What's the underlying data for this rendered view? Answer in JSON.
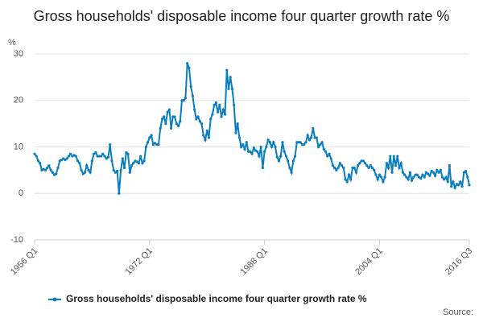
{
  "chart_data": {
    "type": "line",
    "title": "Gross households' disposable income four quarter growth rate %",
    "y_label": "%",
    "source": "Source:",
    "categories": [
      "1956 Q1",
      null,
      null,
      null,
      null,
      null,
      null,
      null,
      null,
      null,
      null,
      null,
      null,
      null,
      null,
      null,
      null,
      null,
      null,
      null,
      null,
      null,
      null,
      null,
      null,
      null,
      null,
      null,
      null,
      null,
      null,
      null,
      null,
      null,
      null,
      null,
      null,
      null,
      null,
      null,
      null,
      null,
      null,
      null,
      null,
      null,
      null,
      null,
      null,
      null,
      null,
      null,
      null,
      null,
      null,
      null,
      null,
      null,
      null,
      null,
      null,
      null,
      null,
      null,
      "1972 Q1",
      null,
      null,
      null,
      null,
      null,
      null,
      null,
      null,
      null,
      null,
      null,
      null,
      null,
      null,
      null,
      null,
      null,
      null,
      null,
      null,
      null,
      null,
      null,
      null,
      null,
      null,
      null,
      null,
      null,
      null,
      null,
      null,
      null,
      null,
      null,
      null,
      null,
      null,
      null,
      null,
      null,
      null,
      null,
      null,
      null,
      null,
      null,
      null,
      null,
      null,
      null,
      null,
      null,
      null,
      null,
      null,
      null,
      null,
      null,
      null,
      null,
      null,
      null,
      "1988 Q1",
      null,
      null,
      null,
      null,
      null,
      null,
      null,
      null,
      null,
      null,
      null,
      null,
      null,
      null,
      null,
      null,
      null,
      null,
      null,
      null,
      null,
      null,
      null,
      null,
      null,
      null,
      null,
      null,
      null,
      null,
      null,
      null,
      null,
      null,
      null,
      null,
      null,
      null,
      null,
      null,
      null,
      null,
      null,
      null,
      null,
      null,
      null,
      null,
      null,
      null,
      null,
      null,
      null,
      null,
      null,
      null,
      null,
      null,
      null,
      null,
      null,
      null,
      null,
      "2004 Q1",
      null,
      null,
      null,
      null,
      null,
      null,
      null,
      null,
      null,
      null,
      null,
      null,
      null,
      null,
      null,
      null,
      null,
      null,
      null,
      null,
      null,
      null,
      null,
      null,
      null,
      null,
      null,
      null,
      null,
      null,
      null,
      null,
      null,
      null,
      null,
      null,
      null,
      null,
      null,
      null,
      null,
      null,
      null,
      null,
      null,
      null,
      null,
      null,
      null,
      "2016 Q3"
    ],
    "series": [
      {
        "name": "Gross households' disposable income four quarter growth rate %",
        "color": "#0a7ebf",
        "values": [
          8.5,
          8,
          7,
          6.5,
          5,
          5.2,
          5,
          5.5,
          6,
          5,
          4.5,
          4,
          4.2,
          5.5,
          7,
          7.2,
          7.5,
          7.2,
          7.5,
          8,
          8.5,
          8,
          8.2,
          8,
          7,
          6.5,
          5,
          4.2,
          4.5,
          6,
          5,
          4.5,
          7,
          8.5,
          8.8,
          8,
          8,
          8,
          8.5,
          8,
          7.5,
          7.8,
          10.5,
          7,
          5,
          4.5,
          4.8,
          0,
          5,
          7.5,
          5.5,
          8.8,
          8.5,
          4.5,
          6,
          6.5,
          7,
          6.8,
          6.5,
          8,
          6.5,
          7,
          10,
          11,
          12,
          12.5,
          10.5,
          10.8,
          10.5,
          10.5,
          14,
          16,
          16.5,
          15,
          17.5,
          18,
          14,
          16.5,
          16.5,
          15,
          14.5,
          15.5,
          20,
          20,
          20.5,
          28,
          27,
          23,
          21,
          18,
          16,
          16.5,
          15.5,
          15,
          12.5,
          11.5,
          13.5,
          12,
          16,
          17,
          19,
          19.5,
          17.5,
          19,
          16.5,
          18,
          17,
          26.5,
          22.5,
          25,
          22.5,
          19,
          13,
          15,
          12,
          10,
          10.5,
          9.5,
          11,
          9,
          9,
          8.5,
          9.8,
          9.2,
          9,
          8,
          10,
          5.5,
          9,
          10,
          11.5,
          11,
          10,
          11,
          10,
          7.8,
          7,
          8,
          11,
          9,
          8,
          7,
          5.5,
          4.5,
          7,
          8,
          11,
          11,
          11,
          10.5,
          10.5,
          11,
          12.5,
          11.5,
          12,
          14,
          12,
          12,
          10,
          10.5,
          11,
          9.5,
          9,
          8,
          8.5,
          7.5,
          6,
          5.5,
          5,
          5.5,
          6.5,
          6,
          5.5,
          3,
          2.5,
          4,
          3,
          5.5,
          5.5,
          4.5,
          6,
          6.5,
          7,
          7,
          6.5,
          6,
          5.5,
          6,
          5.5,
          5,
          4,
          3,
          4,
          3.5,
          2.5,
          3.5,
          6.5,
          5.5,
          8,
          4.5,
          8,
          6,
          8,
          5.5,
          6.5,
          4.5,
          4,
          3.5,
          3,
          4.5,
          2.8,
          3.5,
          4,
          4,
          3.5,
          3.2,
          4,
          3.5,
          4.5,
          4.2,
          3.8,
          4.8,
          4.5,
          3.8,
          5,
          4.5,
          5,
          3.5,
          3,
          3.5,
          2.5,
          6,
          1.5,
          2.5,
          1.2,
          2,
          1.8,
          2.5,
          1.5,
          4.5,
          4.8,
          3.5,
          1.8
        ]
      }
    ],
    "ylim": [
      -10,
      30
    ],
    "yticks": [
      -10,
      0,
      10,
      20,
      30
    ],
    "grid": true
  }
}
